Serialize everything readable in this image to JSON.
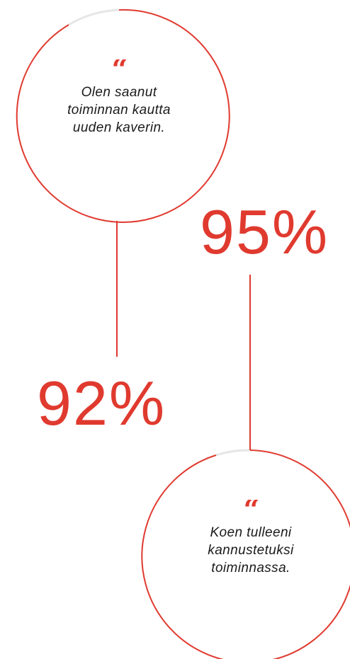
{
  "colors": {
    "accent": "#e03a2f",
    "track": "#e6e6e6",
    "text": "#1a1a1a"
  },
  "quotes": [
    {
      "mark": "“",
      "lines": [
        "Olen saanut",
        "toiminnan kautta",
        "uuden kaverin."
      ]
    },
    {
      "mark": "“",
      "lines": [
        "Koen tulleeni",
        "kannustetuksi",
        "toiminnassa."
      ]
    }
  ],
  "stats": [
    {
      "value": "95%"
    },
    {
      "value": "92%"
    }
  ]
}
